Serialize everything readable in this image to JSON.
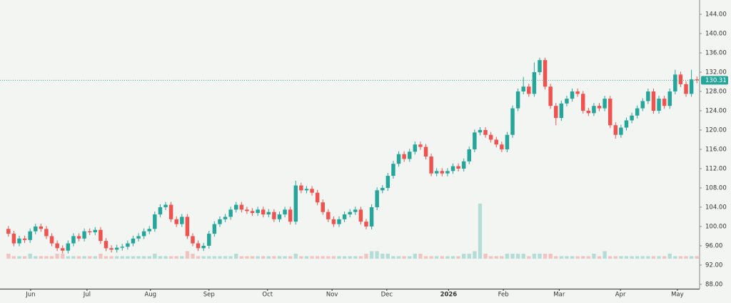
{
  "chart_data": {
    "type": "candlestick",
    "up_color": "#26a69a",
    "down_color": "#ef5350",
    "last_price": 130.31,
    "ylim": [
      87.1,
      146.96
    ],
    "yticks": [
      {
        "value": 88,
        "label": "88.00"
      },
      {
        "value": 92,
        "label": "92.00"
      },
      {
        "value": 96,
        "label": "96.00"
      },
      {
        "value": 100,
        "label": "100.00"
      },
      {
        "value": 104,
        "label": "104.00"
      },
      {
        "value": 108,
        "label": "108.00"
      },
      {
        "value": 112,
        "label": "112.00"
      },
      {
        "value": 116,
        "label": "116.00"
      },
      {
        "value": 120,
        "label": "120.00"
      },
      {
        "value": 124,
        "label": "124.00"
      },
      {
        "value": 128,
        "label": "128.00"
      },
      {
        "value": 132,
        "label": "132.00"
      },
      {
        "value": 136,
        "label": "136.00"
      },
      {
        "value": 140,
        "label": "140.00"
      },
      {
        "value": 144,
        "label": "144.00"
      }
    ],
    "xticks": [
      {
        "value": 4.1,
        "label": "Jun"
      },
      {
        "value": 14.5,
        "label": "Jul"
      },
      {
        "value": 26.2,
        "label": "Aug"
      },
      {
        "value": 37,
        "label": "Sep"
      },
      {
        "value": 47.8,
        "label": "Oct"
      },
      {
        "value": 59.7,
        "label": "Nov"
      },
      {
        "value": 69.8,
        "label": "Dec"
      },
      {
        "value": 81.2,
        "label": "2026"
      },
      {
        "value": 91.3,
        "label": "Feb"
      },
      {
        "value": 101.6,
        "label": "Mar"
      },
      {
        "value": 112.9,
        "label": "Apr"
      },
      {
        "value": 123.4,
        "label": "May"
      }
    ],
    "open": [
      99.5,
      98.5,
      96.5,
      97.5,
      97.2,
      99,
      100,
      99.5,
      98,
      96.5,
      95.5,
      95,
      96.5,
      98,
      97.5,
      99,
      98.8,
      99.3,
      97,
      95.5,
      95.2,
      95.6,
      95.8,
      96.5,
      97.5,
      98,
      99,
      99.5,
      102.5,
      104,
      104.5,
      101.5,
      100.5,
      102,
      98,
      96.5,
      95.5,
      96,
      98.5,
      100.5,
      101.5,
      102,
      103.5,
      104.5,
      103.5,
      103.2,
      102.8,
      103.5,
      102.5,
      103,
      101.5,
      102.5,
      103.5,
      101,
      108.5,
      107.5,
      107.8,
      107,
      105,
      103,
      101.5,
      100.5,
      101.5,
      102.5,
      103,
      103.5,
      101,
      100,
      104,
      107.5,
      108,
      110.5,
      113,
      115,
      114,
      115.5,
      117,
      116.5,
      114.5,
      111,
      111.5,
      111,
      111.5,
      112.5,
      112,
      113.5,
      116,
      119.5,
      120,
      119,
      118,
      117,
      116,
      119,
      124.5,
      128,
      129,
      127.5,
      132,
      134.5,
      129,
      125,
      122.5,
      125.5,
      126.5,
      128,
      127.5,
      124,
      123.5,
      125,
      124.5,
      126.5,
      121,
      119,
      120.5,
      122,
      123,
      124.5,
      126,
      128,
      124,
      126.5,
      125,
      128,
      131.5,
      129.5,
      127.5,
      130.5
    ],
    "high": [
      100.1,
      99.1,
      98.1,
      98.1,
      99.6,
      100.6,
      100.6,
      100.1,
      98.6,
      97.1,
      96.1,
      97.1,
      98.6,
      98.6,
      99.6,
      99.6,
      99.9,
      99.9,
      97.6,
      96.1,
      96.2,
      96.4,
      97.1,
      98.1,
      98.6,
      99.6,
      100.1,
      103.1,
      104.6,
      105.1,
      105.1,
      102.1,
      102.6,
      102.6,
      98.6,
      97.1,
      96.6,
      99.1,
      101.1,
      102.1,
      102.6,
      104.1,
      105.1,
      105.1,
      104.1,
      103.8,
      104.1,
      104.1,
      103.6,
      103.6,
      103.1,
      104.1,
      104.1,
      109.5,
      109.1,
      108.4,
      108.4,
      107.6,
      105.6,
      103.6,
      102.1,
      102.1,
      103.1,
      103.6,
      104.1,
      104.1,
      101.6,
      104.6,
      108.1,
      108.6,
      111.1,
      113.6,
      115.6,
      115.6,
      116.1,
      117.6,
      117.6,
      117.1,
      115.1,
      112.1,
      112.1,
      112.1,
      113.1,
      113.1,
      114.1,
      116.6,
      120.1,
      120.6,
      120.6,
      119.6,
      118.6,
      117.6,
      119.6,
      125.1,
      128.6,
      131,
      129.6,
      134,
      135,
      135,
      129.6,
      125.6,
      126.1,
      127.1,
      128.6,
      128.6,
      128.1,
      124.6,
      125.6,
      125.6,
      127.1,
      127.1,
      121.6,
      121.1,
      122.6,
      123.6,
      125.1,
      126.6,
      128.6,
      128.6,
      127.1,
      127.1,
      128.6,
      132.5,
      132.1,
      130.1,
      132.5,
      131.1
    ],
    "low": [
      97.9,
      95.9,
      95.9,
      96.6,
      96.6,
      98.4,
      98.9,
      97.4,
      95.9,
      94.9,
      94.4,
      94.4,
      95.9,
      96.9,
      96.9,
      98.2,
      98.2,
      96.4,
      94.9,
      94.6,
      94.6,
      95,
      95.2,
      95.9,
      96.9,
      97.4,
      98.4,
      98.9,
      101.9,
      103.4,
      100.9,
      99.9,
      99.9,
      97.4,
      95.9,
      94.9,
      94.9,
      95.4,
      97.9,
      99.9,
      100.9,
      101.4,
      102.9,
      102.9,
      102.6,
      102.2,
      102.2,
      101.9,
      101.9,
      100.9,
      100.9,
      101.9,
      100.4,
      100.4,
      106.9,
      106.9,
      106.4,
      104.4,
      102.4,
      100.9,
      99.9,
      99.9,
      100.9,
      101.9,
      102.4,
      100.4,
      99.4,
      99.4,
      103.4,
      106.9,
      107.4,
      109.9,
      112.4,
      113.4,
      113.4,
      114.9,
      115.9,
      113.9,
      110.4,
      110.4,
      110.4,
      110.4,
      110.9,
      111.4,
      111.4,
      112.9,
      115.4,
      118.9,
      118.4,
      117.4,
      116.4,
      115.4,
      115.4,
      118.4,
      123.9,
      127.4,
      126.9,
      126.9,
      131.4,
      128.4,
      124.4,
      121,
      121.9,
      124.9,
      125.9,
      126.9,
      123.4,
      122.9,
      122.9,
      123.9,
      123.9,
      120.4,
      118.2,
      118.4,
      119.9,
      121.4,
      122.4,
      123.9,
      125.4,
      123.4,
      123.4,
      124.4,
      124.4,
      127.4,
      128.9,
      126.9,
      126.9,
      129.7
    ],
    "close": [
      98.5,
      96.5,
      97.5,
      97.2,
      99,
      100,
      99.5,
      98,
      96.5,
      95.5,
      95,
      96.5,
      98,
      97.5,
      99,
      98.8,
      99.3,
      97,
      95.5,
      95.2,
      95.6,
      95.8,
      96.5,
      97.5,
      98,
      99,
      99.5,
      102.5,
      104,
      104.5,
      101.5,
      100.5,
      102,
      98,
      96.5,
      95.5,
      96,
      98.5,
      100.5,
      101.5,
      102,
      103.5,
      104.5,
      103.5,
      103.2,
      102.8,
      103.5,
      102.5,
      103,
      101.5,
      102.5,
      103.5,
      101,
      108.5,
      107.5,
      107.8,
      107,
      105,
      103,
      101.5,
      100.5,
      101.5,
      102.5,
      103,
      103.5,
      101,
      100,
      104,
      107.5,
      108,
      110.5,
      113,
      115,
      114,
      115.5,
      117,
      116.5,
      114.5,
      111,
      111.5,
      111,
      111.5,
      112.5,
      112,
      113.5,
      116,
      119.5,
      120,
      119,
      118,
      117,
      116,
      119,
      124.5,
      128,
      129,
      127.5,
      132,
      134.5,
      129,
      125,
      122.5,
      125.5,
      126.5,
      128,
      127.5,
      124,
      123.5,
      125,
      124.5,
      126.5,
      121,
      119,
      120.5,
      122,
      123,
      124.5,
      126,
      128,
      124,
      126.5,
      125,
      128,
      131.5,
      129.5,
      127.5,
      130.5,
      130.31
    ],
    "volume": [
      2,
      1,
      1,
      1,
      2,
      1,
      1,
      1,
      1,
      2,
      2,
      1,
      1,
      1,
      1,
      1,
      1,
      2,
      1,
      1,
      1,
      1,
      1,
      1,
      1,
      1,
      1,
      2,
      1,
      1,
      1,
      1,
      1,
      3,
      2,
      1,
      1,
      1,
      1,
      1,
      1,
      1,
      2,
      1,
      1,
      1,
      1,
      1,
      1,
      1,
      1,
      1,
      1,
      2,
      1,
      1,
      1,
      1,
      1,
      1,
      1,
      1,
      1,
      1,
      1,
      1,
      2,
      3,
      3,
      2,
      2,
      1,
      1,
      1,
      1,
      2,
      2,
      1,
      1,
      1,
      1,
      1,
      1,
      1,
      2,
      2,
      3,
      22,
      2,
      1,
      1,
      1,
      2,
      2,
      2,
      2,
      1,
      2,
      2,
      2,
      2,
      1,
      1,
      1,
      1,
      1,
      1,
      1,
      2,
      1,
      3,
      1,
      1,
      1,
      1,
      1,
      1,
      1,
      1,
      1,
      1,
      1,
      2,
      1,
      1,
      1,
      1,
      1
    ]
  }
}
